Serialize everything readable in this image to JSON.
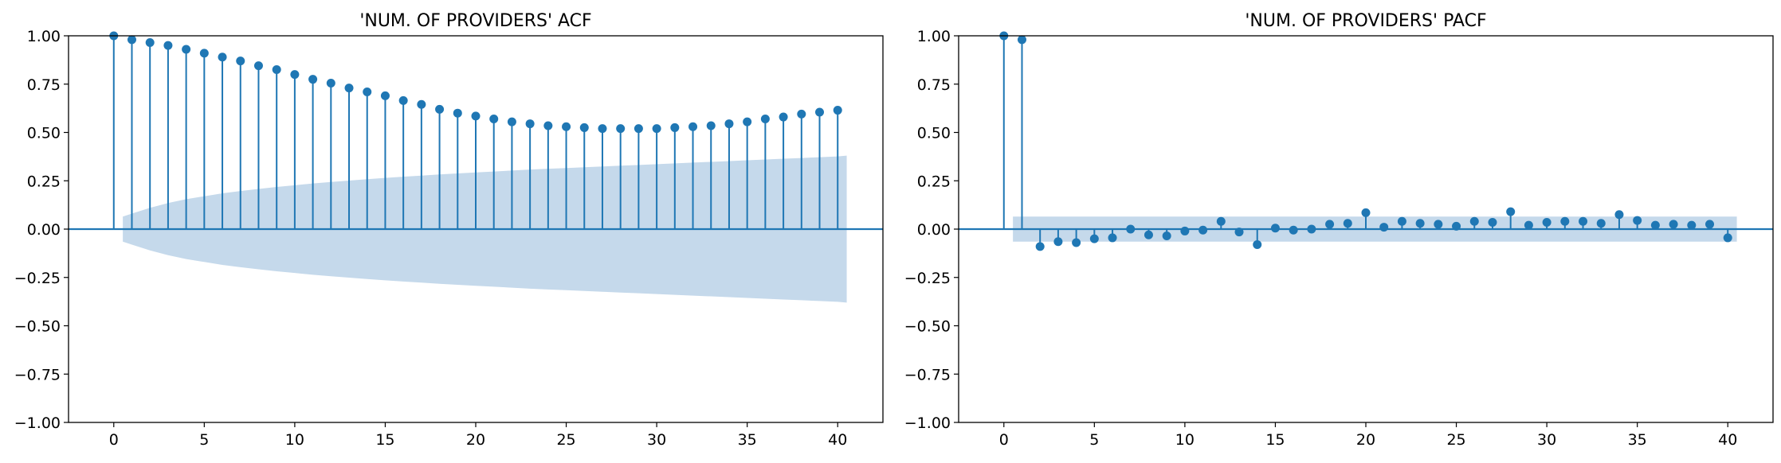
{
  "chart_data": [
    {
      "type": "stem",
      "title": "'NUM. OF PROVIDERS' ACF",
      "xlabel": "",
      "ylabel": "",
      "xlim": [
        -2.5,
        42.5
      ],
      "ylim": [
        -1.0,
        1.0
      ],
      "xticks": [
        "0",
        "5",
        "10",
        "15",
        "20",
        "25",
        "30",
        "35",
        "40"
      ],
      "yticks": [
        "1.00",
        "0.75",
        "0.50",
        "0.25",
        "0.00",
        "−0.25",
        "−0.50",
        "−0.75",
        "−1.00"
      ],
      "grid": false,
      "x": [
        0,
        1,
        2,
        3,
        4,
        5,
        6,
        7,
        8,
        9,
        10,
        11,
        12,
        13,
        14,
        15,
        16,
        17,
        18,
        19,
        20,
        21,
        22,
        23,
        24,
        25,
        26,
        27,
        28,
        29,
        30,
        31,
        32,
        33,
        34,
        35,
        36,
        37,
        38,
        39,
        40
      ],
      "values": [
        1.0,
        0.98,
        0.965,
        0.95,
        0.93,
        0.91,
        0.89,
        0.87,
        0.845,
        0.825,
        0.8,
        0.775,
        0.755,
        0.73,
        0.71,
        0.69,
        0.665,
        0.645,
        0.62,
        0.6,
        0.585,
        0.57,
        0.555,
        0.545,
        0.535,
        0.53,
        0.525,
        0.52,
        0.52,
        0.52,
        0.52,
        0.525,
        0.53,
        0.535,
        0.545,
        0.555,
        0.57,
        0.58,
        0.595,
        0.605,
        0.615
      ],
      "confidence_x": [
        0.5,
        1,
        2,
        3,
        4,
        5,
        6,
        7,
        8,
        9,
        10,
        11,
        12,
        13,
        14,
        15,
        16,
        17,
        18,
        19,
        20,
        21,
        22,
        23,
        24,
        25,
        26,
        27,
        28,
        29,
        30,
        31,
        32,
        33,
        34,
        35,
        36,
        37,
        38,
        39,
        40,
        40.5
      ],
      "confidence_upper": [
        0.065,
        0.08,
        0.11,
        0.135,
        0.155,
        0.17,
        0.185,
        0.197,
        0.208,
        0.218,
        0.227,
        0.236,
        0.244,
        0.251,
        0.258,
        0.265,
        0.271,
        0.277,
        0.283,
        0.288,
        0.293,
        0.298,
        0.303,
        0.308,
        0.312,
        0.316,
        0.32,
        0.324,
        0.328,
        0.332,
        0.336,
        0.34,
        0.344,
        0.348,
        0.352,
        0.356,
        0.36,
        0.364,
        0.368,
        0.372,
        0.376,
        0.38
      ],
      "colors": {
        "stem": "#1f77b4",
        "band": "#c5d9eb"
      }
    },
    {
      "type": "stem",
      "title": "'NUM. OF PROVIDERS' PACF",
      "xlabel": "",
      "ylabel": "",
      "xlim": [
        -2.5,
        42.5
      ],
      "ylim": [
        -1.0,
        1.0
      ],
      "xticks": [
        "0",
        "5",
        "10",
        "15",
        "20",
        "25",
        "30",
        "35",
        "40"
      ],
      "yticks": [
        "1.00",
        "0.75",
        "0.50",
        "0.25",
        "0.00",
        "−0.25",
        "−0.50",
        "−0.75",
        "−1.00"
      ],
      "grid": false,
      "x": [
        0,
        1,
        2,
        3,
        4,
        5,
        6,
        7,
        8,
        9,
        10,
        11,
        12,
        13,
        14,
        15,
        16,
        17,
        18,
        19,
        20,
        21,
        22,
        23,
        24,
        25,
        26,
        27,
        28,
        29,
        30,
        31,
        32,
        33,
        34,
        35,
        36,
        37,
        38,
        39,
        40
      ],
      "values": [
        1.0,
        0.98,
        -0.09,
        -0.065,
        -0.07,
        -0.05,
        -0.045,
        0.0,
        -0.03,
        -0.035,
        -0.01,
        -0.005,
        0.04,
        -0.015,
        -0.08,
        0.005,
        -0.005,
        0.0,
        0.025,
        0.03,
        0.085,
        0.01,
        0.04,
        0.03,
        0.025,
        0.015,
        0.04,
        0.035,
        0.09,
        0.02,
        0.035,
        0.04,
        0.04,
        0.03,
        0.075,
        0.045,
        0.02,
        0.025,
        0.02,
        0.025,
        -0.045
      ],
      "confidence_x": [
        0.5,
        40.5
      ],
      "confidence_upper": [
        0.065,
        0.065
      ],
      "colors": {
        "stem": "#1f77b4",
        "band": "#c5d9eb"
      }
    }
  ]
}
